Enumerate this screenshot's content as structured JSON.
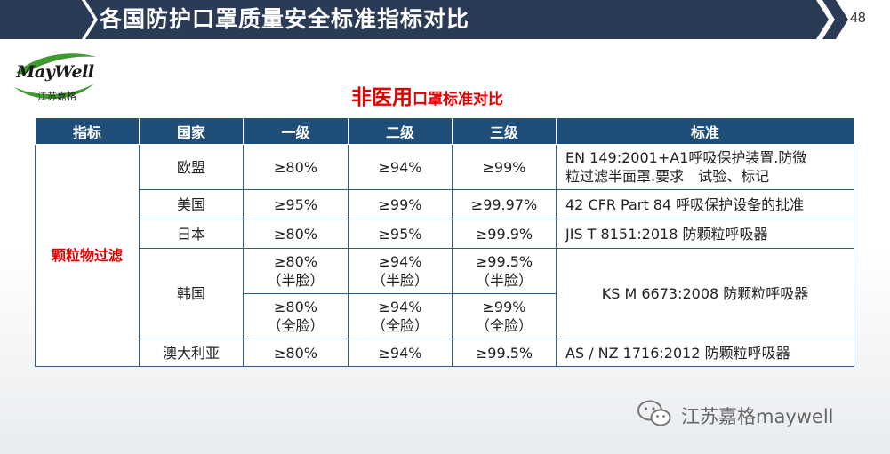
{
  "header": {
    "title": "各国防护口罩质量安全标准指标对比",
    "page_number": "48"
  },
  "logo": {
    "name": "MayWell",
    "sub": "江苏嘉格"
  },
  "subtitle": {
    "big": "非医用",
    "small": "口罩标准对比"
  },
  "table": {
    "headers": [
      "指标",
      "国家",
      "一级",
      "二级",
      "三级",
      "标准"
    ],
    "indicator": "颗粒物过滤",
    "rows": {
      "eu": {
        "country": "欧盟",
        "l1": "≥80%",
        "l2": "≥94%",
        "l3": "≥99%",
        "std_line1": "EN 149:2001+A1呼吸保护装置.防微",
        "std_line2": "粒过滤半面罩.要求　试验、标记"
      },
      "us": {
        "country": "美国",
        "l1": "≥95%",
        "l2": "≥99%",
        "l3": "≥99.97%",
        "std": "42 CFR Part 84 呼吸保护设备的批准"
      },
      "jp": {
        "country": "日本",
        "l1": "≥80%",
        "l2": "≥95%",
        "l3": "≥99.9%",
        "std": "JIS T 8151:2018  防颗粒呼吸器"
      },
      "kr": {
        "country": "韩国",
        "half": {
          "l1": "≥80%",
          "l2": "≥94%",
          "l3": "≥99.5%",
          "note": "（半脸）"
        },
        "full": {
          "l1": "≥80%",
          "l2": "≥94%",
          "l3": "≥99%",
          "note": "（全脸）"
        },
        "std": "KS M 6673:2008 防颗粒呼吸器"
      },
      "au": {
        "country": "澳大利亚",
        "l1": "≥80%",
        "l2": "≥94%",
        "l3": "≥99.5%",
        "std": "AS / NZ 1716:2012 防颗粒呼吸器"
      }
    }
  },
  "watermark": {
    "text": "江苏嘉格maywell"
  },
  "colors": {
    "header_bg": "#2b3a55",
    "table_header_bg": "#1f4e79",
    "accent_red": "#e00000",
    "logo_green": "#3f9a2f"
  }
}
